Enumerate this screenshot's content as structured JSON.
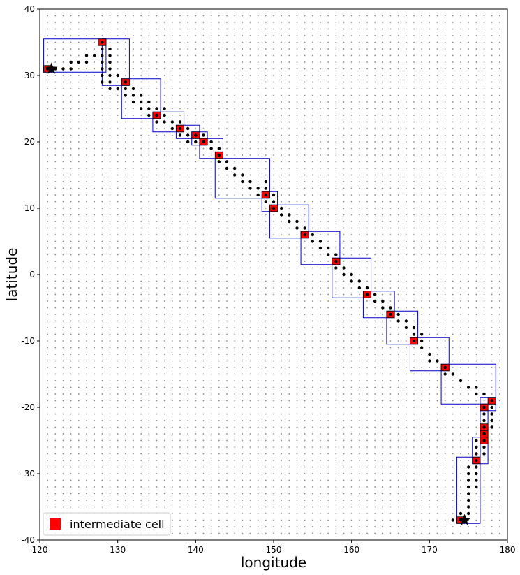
{
  "chart_data": {
    "type": "scatter",
    "xlabel": "longitude",
    "ylabel": "latitude",
    "xlim": [
      120,
      180
    ],
    "ylim": [
      -40,
      40
    ],
    "x_ticks": [
      "120",
      "130",
      "140",
      "150",
      "160",
      "170",
      "180"
    ],
    "y_ticks": [
      "40",
      "30",
      "20",
      "10",
      "0",
      "-10",
      "-20",
      "-30",
      "-40"
    ],
    "grid": "dotted grid of candidate cell centers every 1 degree",
    "legend": {
      "position": "bottom-left",
      "entries": [
        {
          "label": "intermediate cell",
          "color": "#ff0000"
        }
      ]
    },
    "colors": {
      "cell": "#ff0000",
      "box": "#0000cc",
      "path": "#000000",
      "grid": "#888888"
    },
    "endpoints": [
      [
        121.5,
        31.0
      ],
      [
        174.5,
        -37.0
      ]
    ],
    "intermediate_cells": [
      [
        121,
        31
      ],
      [
        128,
        35
      ],
      [
        131,
        29
      ],
      [
        135,
        24
      ],
      [
        138,
        22
      ],
      [
        140,
        21
      ],
      [
        141,
        20
      ],
      [
        143,
        18
      ],
      [
        149,
        12
      ],
      [
        150,
        10
      ],
      [
        154,
        6
      ],
      [
        158,
        2
      ],
      [
        162,
        -3
      ],
      [
        165,
        -6
      ],
      [
        168,
        -10
      ],
      [
        172,
        -14
      ],
      [
        178,
        -19
      ],
      [
        177,
        -20
      ],
      [
        177,
        -23
      ],
      [
        177,
        -24
      ],
      [
        177,
        -25
      ],
      [
        176,
        -28
      ],
      [
        174,
        -37
      ]
    ],
    "boxes": [
      [
        120.5,
        128.5,
        30.5,
        35.5
      ],
      [
        128,
        131.5,
        28.5,
        35.5
      ],
      [
        130.5,
        135.5,
        23.5,
        29.5
      ],
      [
        134.5,
        138.5,
        21.5,
        24.5
      ],
      [
        137.5,
        140.5,
        20.5,
        22.5
      ],
      [
        139.5,
        141.5,
        19.5,
        21.5
      ],
      [
        140.5,
        143.5,
        17.5,
        20.5
      ],
      [
        142.5,
        149.5,
        11.5,
        17.5
      ],
      [
        148.5,
        150.5,
        9.5,
        12.5
      ],
      [
        149.5,
        154.5,
        5.5,
        10.5
      ],
      [
        153.5,
        158.5,
        1.5,
        6.5
      ],
      [
        157.5,
        162.5,
        -3.5,
        2.5
      ],
      [
        161.5,
        165.5,
        -6.5,
        -2.5
      ],
      [
        164.5,
        168.5,
        -10.5,
        -5.5
      ],
      [
        167.5,
        172.5,
        -14.5,
        -9.5
      ],
      [
        171.5,
        178.5,
        -19.5,
        -13.5
      ],
      [
        176.5,
        178.5,
        -20.5,
        -18.5
      ],
      [
        176.5,
        177.5,
        -28.5,
        -19.5
      ],
      [
        175.5,
        176.5,
        -28.5,
        -24.5
      ],
      [
        173.5,
        176.5,
        -37.5,
        -27.5
      ]
    ],
    "path_points": [
      [
        122,
        31
      ],
      [
        123,
        31
      ],
      [
        124,
        31
      ],
      [
        124,
        32
      ],
      [
        125,
        32
      ],
      [
        126,
        32
      ],
      [
        126,
        33
      ],
      [
        127,
        33
      ],
      [
        128,
        34
      ],
      [
        128,
        33
      ],
      [
        128,
        32
      ],
      [
        128,
        31
      ],
      [
        128,
        30
      ],
      [
        128,
        29
      ],
      [
        129,
        34
      ],
      [
        129,
        33
      ],
      [
        129,
        32
      ],
      [
        129,
        31
      ],
      [
        129,
        30
      ],
      [
        129,
        29
      ],
      [
        129,
        28
      ],
      [
        130,
        30
      ],
      [
        130,
        28
      ],
      [
        131,
        28
      ],
      [
        131,
        27
      ],
      [
        132,
        28
      ],
      [
        132,
        27
      ],
      [
        132,
        26
      ],
      [
        133,
        27
      ],
      [
        133,
        26
      ],
      [
        133,
        25
      ],
      [
        134,
        26
      ],
      [
        134,
        25
      ],
      [
        134,
        24
      ],
      [
        135,
        25
      ],
      [
        135,
        23
      ],
      [
        136,
        25
      ],
      [
        136,
        24
      ],
      [
        136,
        23
      ],
      [
        137,
        23
      ],
      [
        137,
        22
      ],
      [
        138,
        23
      ],
      [
        138,
        21
      ],
      [
        139,
        22
      ],
      [
        139,
        21
      ],
      [
        139,
        20
      ],
      [
        140,
        20
      ],
      [
        141,
        21
      ],
      [
        142,
        19
      ],
      [
        142,
        20
      ],
      [
        143,
        19
      ],
      [
        143,
        17
      ],
      [
        144,
        17
      ],
      [
        144,
        16
      ],
      [
        145,
        16
      ],
      [
        145,
        15
      ],
      [
        146,
        15
      ],
      [
        146,
        14
      ],
      [
        147,
        14
      ],
      [
        147,
        13
      ],
      [
        148,
        13
      ],
      [
        148,
        12
      ],
      [
        149,
        13
      ],
      [
        149,
        14
      ],
      [
        149,
        11
      ],
      [
        150,
        12
      ],
      [
        150,
        11
      ],
      [
        151,
        10
      ],
      [
        151,
        9
      ],
      [
        152,
        9
      ],
      [
        152,
        8
      ],
      [
        153,
        8
      ],
      [
        153,
        7
      ],
      [
        154,
        7
      ],
      [
        155,
        6
      ],
      [
        155,
        5
      ],
      [
        156,
        5
      ],
      [
        156,
        4
      ],
      [
        157,
        4
      ],
      [
        157,
        3
      ],
      [
        158,
        3
      ],
      [
        158,
        1
      ],
      [
        159,
        1
      ],
      [
        159,
        0
      ],
      [
        160,
        0
      ],
      [
        160,
        -1
      ],
      [
        161,
        -1
      ],
      [
        161,
        -2
      ],
      [
        162,
        -2
      ],
      [
        163,
        -3
      ],
      [
        163,
        -4
      ],
      [
        164,
        -4
      ],
      [
        164,
        -5
      ],
      [
        165,
        -5
      ],
      [
        166,
        -6
      ],
      [
        166,
        -7
      ],
      [
        167,
        -7
      ],
      [
        167,
        -8
      ],
      [
        168,
        -8
      ],
      [
        168,
        -9
      ],
      [
        169,
        -9
      ],
      [
        169,
        -10
      ],
      [
        169,
        -11
      ],
      [
        170,
        -12
      ],
      [
        170,
        -13
      ],
      [
        171,
        -13
      ],
      [
        172,
        -15
      ],
      [
        173,
        -15
      ],
      [
        174,
        -16
      ],
      [
        175,
        -17
      ],
      [
        176,
        -17
      ],
      [
        176,
        -18
      ],
      [
        177,
        -18
      ],
      [
        177,
        -21
      ],
      [
        177,
        -22
      ],
      [
        177,
        -26
      ],
      [
        177,
        -27
      ],
      [
        178,
        -20
      ],
      [
        178,
        -21
      ],
      [
        178,
        -22
      ],
      [
        178,
        -23
      ],
      [
        176,
        -25
      ],
      [
        176,
        -26
      ],
      [
        176,
        -27
      ],
      [
        176,
        -29
      ],
      [
        176,
        -30
      ],
      [
        176,
        -31
      ],
      [
        176,
        -32
      ],
      [
        175,
        -29
      ],
      [
        175,
        -30
      ],
      [
        175,
        -31
      ],
      [
        175,
        -32
      ],
      [
        175,
        -33
      ],
      [
        175,
        -34
      ],
      [
        175,
        -35
      ],
      [
        175,
        -36
      ],
      [
        174,
        -36
      ],
      [
        173,
        -37
      ]
    ]
  }
}
